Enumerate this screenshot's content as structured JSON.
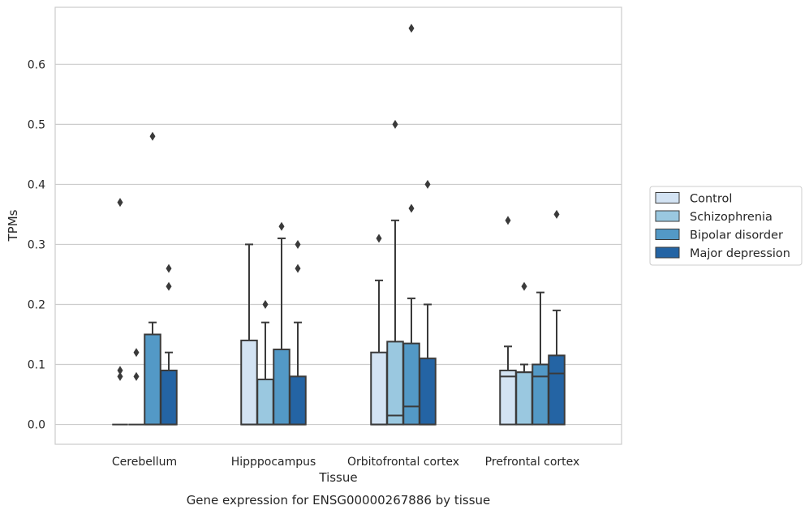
{
  "chart_data": {
    "type": "box",
    "title": "Gene expression for ENSG00000267886 by tissue",
    "xlabel": "Tissue",
    "ylabel": "TPMs",
    "ylim": [
      -0.033,
      0.695
    ],
    "yticks": [
      "0.0",
      "0.1",
      "0.2",
      "0.3",
      "0.4",
      "0.5",
      "0.6"
    ],
    "grid": true,
    "legend_position": "right",
    "categories": [
      "Cerebellum",
      "Hipppocampus",
      "Orbitofrontal cortex",
      "Prefrontal cortex"
    ],
    "series": [
      {
        "name": "Control",
        "color": "#d3e3f3",
        "boxes": [
          {
            "q1": 0.0,
            "median": 0.0,
            "q3": 0.0,
            "whisker_low": 0.0,
            "whisker_high": 0.0,
            "outliers": [
              0.08,
              0.09,
              0.37
            ]
          },
          {
            "q1": 0.0,
            "median": 0.0,
            "q3": 0.14,
            "whisker_low": 0.0,
            "whisker_high": 0.3,
            "outliers": []
          },
          {
            "q1": 0.0,
            "median": 0.0,
            "q3": 0.12,
            "whisker_low": 0.0,
            "whisker_high": 0.24,
            "outliers": [
              0.31
            ]
          },
          {
            "q1": 0.0,
            "median": 0.08,
            "q3": 0.09,
            "whisker_low": 0.0,
            "whisker_high": 0.13,
            "outliers": [
              0.34
            ]
          }
        ]
      },
      {
        "name": "Schizophrenia",
        "color": "#9ac8e0",
        "boxes": [
          {
            "q1": 0.0,
            "median": 0.0,
            "q3": 0.0,
            "whisker_low": 0.0,
            "whisker_high": 0.0,
            "outliers": [
              0.08,
              0.12
            ]
          },
          {
            "q1": 0.0,
            "median": 0.0,
            "q3": 0.075,
            "whisker_low": 0.0,
            "whisker_high": 0.17,
            "outliers": [
              0.2
            ]
          },
          {
            "q1": 0.0,
            "median": 0.015,
            "q3": 0.138,
            "whisker_low": 0.0,
            "whisker_high": 0.34,
            "outliers": [
              0.5
            ]
          },
          {
            "q1": 0.0,
            "median": 0.087,
            "q3": 0.087,
            "whisker_low": 0.0,
            "whisker_high": 0.1,
            "outliers": [
              0.23
            ]
          }
        ]
      },
      {
        "name": "Bipolar disorder",
        "color": "#5399c6",
        "boxes": [
          {
            "q1": 0.0,
            "median": 0.0,
            "q3": 0.15,
            "whisker_low": 0.0,
            "whisker_high": 0.17,
            "outliers": [
              0.48
            ]
          },
          {
            "q1": 0.0,
            "median": 0.0,
            "q3": 0.125,
            "whisker_low": 0.0,
            "whisker_high": 0.31,
            "outliers": [
              0.33
            ]
          },
          {
            "q1": 0.0,
            "median": 0.03,
            "q3": 0.135,
            "whisker_low": 0.0,
            "whisker_high": 0.21,
            "outliers": [
              0.36,
              0.66
            ]
          },
          {
            "q1": 0.0,
            "median": 0.08,
            "q3": 0.1,
            "whisker_low": 0.0,
            "whisker_high": 0.22,
            "outliers": []
          }
        ]
      },
      {
        "name": "Major depression",
        "color": "#2464a4",
        "boxes": [
          {
            "q1": 0.0,
            "median": 0.0,
            "q3": 0.09,
            "whisker_low": 0.0,
            "whisker_high": 0.12,
            "outliers": [
              0.23,
              0.26
            ]
          },
          {
            "q1": 0.0,
            "median": 0.0,
            "q3": 0.08,
            "whisker_low": 0.0,
            "whisker_high": 0.17,
            "outliers": [
              0.26,
              0.3
            ]
          },
          {
            "q1": 0.0,
            "median": 0.0,
            "q3": 0.11,
            "whisker_low": 0.0,
            "whisker_high": 0.2,
            "outliers": [
              0.4
            ]
          },
          {
            "q1": 0.0,
            "median": 0.085,
            "q3": 0.115,
            "whisker_low": 0.0,
            "whisker_high": 0.19,
            "outliers": [
              0.35
            ]
          }
        ]
      }
    ]
  }
}
